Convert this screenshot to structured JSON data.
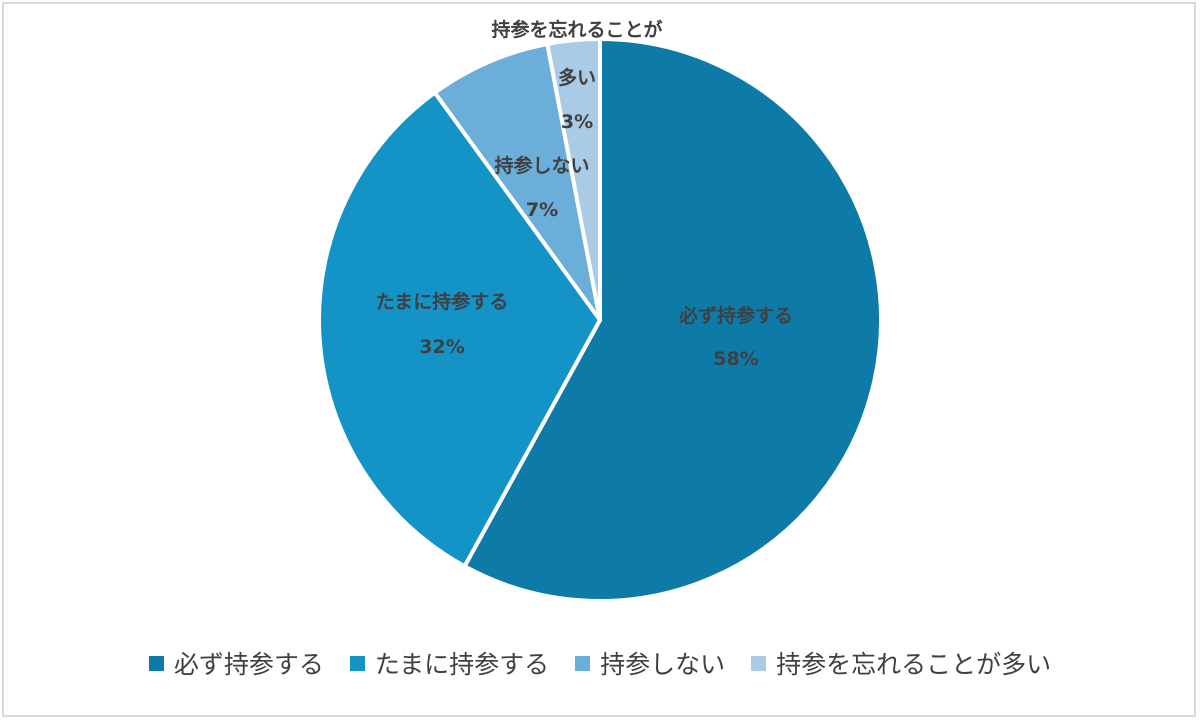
{
  "chart_data": {
    "type": "pie",
    "title": "",
    "start_angle_deg": 0,
    "direction": "clockwise",
    "categories": [
      "必ず持参する",
      "たまに持参する",
      "持参しない",
      "持参を忘れることが多い"
    ],
    "values": [
      58,
      32,
      7,
      3
    ],
    "value_labels": [
      "58%",
      "32%",
      "7%",
      "3%"
    ],
    "colors": [
      "#0e7aa8",
      "#1393c6",
      "#6aaed9",
      "#a9cbe6"
    ],
    "legend_position": "bottom",
    "data_labels": [
      {
        "name_lines": [
          "必ず持参する"
        ],
        "value": "58%"
      },
      {
        "name_lines": [
          "たまに持参する"
        ],
        "value": "32%"
      },
      {
        "name_lines": [
          "持参しない"
        ],
        "value": "7%"
      },
      {
        "name_lines": [
          "持参を忘れることが",
          "多い"
        ],
        "value": "3%"
      }
    ]
  },
  "legend": [
    {
      "label": "必ず持参する",
      "color": "#0e7aa8"
    },
    {
      "label": "たまに持参する",
      "color": "#1393c6"
    },
    {
      "label": "持参しない",
      "color": "#6aaed9"
    },
    {
      "label": "持参を忘れることが多い",
      "color": "#a9cbe6"
    }
  ]
}
